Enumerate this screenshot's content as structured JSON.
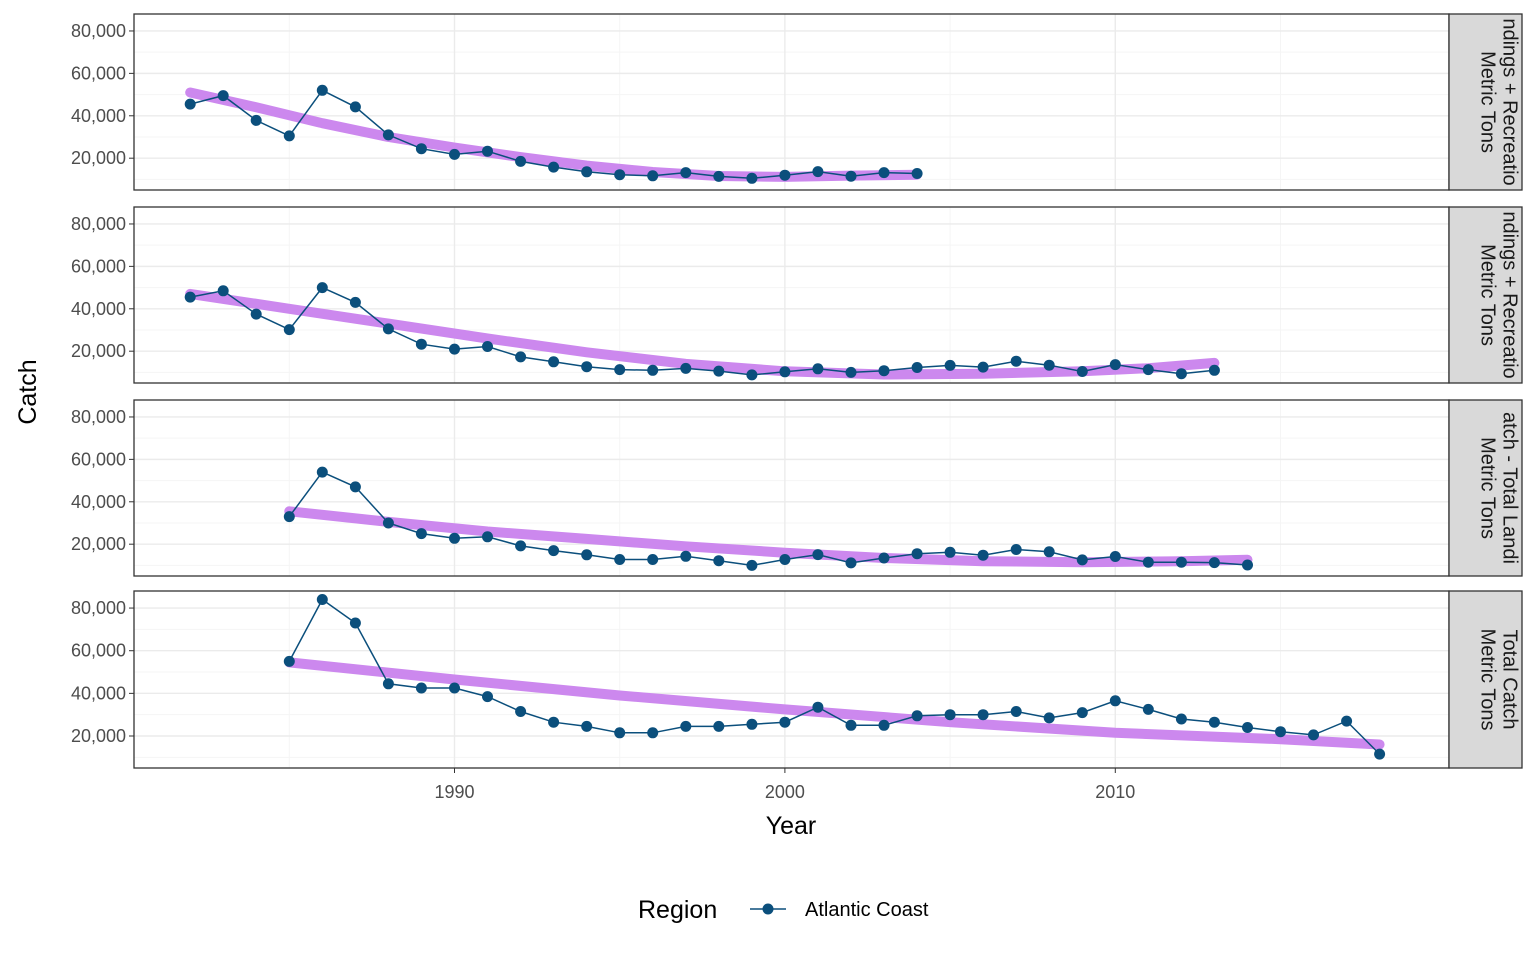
{
  "chart_data": {
    "type": "line",
    "xlabel": "Year",
    "ylabel": "Catch",
    "xlim": [
      1980.3,
      2020.1
    ],
    "x_ticks": [
      1990,
      2000,
      2010
    ],
    "x_tick_labels": [
      "1990",
      "2000",
      "2010"
    ],
    "y_ticks": [
      20000,
      40000,
      60000,
      80000
    ],
    "y_tick_labels": [
      "20,000",
      "40,000",
      "60,000",
      "80,000"
    ],
    "grid": true,
    "legend": {
      "position": "bottom",
      "title": "Region",
      "entries": [
        "Atlantic Coast"
      ]
    },
    "colors": {
      "series": "#0b4f7c",
      "trend": "#cc88ee",
      "strip_fill": "#d9d9d9",
      "grid_major": "#ebebeb",
      "grid_minor": "#f5f5f5"
    },
    "panels": [
      {
        "strip_lines": [
          "ndings + Recreatio",
          "Metric Tons"
        ],
        "ylim": [
          5000,
          88000
        ],
        "series": [
          {
            "name": "Atlantic Coast",
            "x": [
              1982,
              1983,
              1984,
              1985,
              1986,
              1987,
              1988,
              1989,
              1990,
              1991,
              1992,
              1993,
              1994,
              1995,
              1996,
              1997,
              1998,
              1999,
              2000,
              2001,
              2002,
              2003,
              2004
            ],
            "y": [
              45500,
              49500,
              37800,
              30500,
              52000,
              44200,
              31000,
              24500,
              21800,
              23300,
              18500,
              15800,
              13600,
              12200,
              11700,
              13200,
              11400,
              10500,
              12000,
              13700,
              11500,
              13200,
              12800
            ]
          }
        ],
        "trend": {
          "x": [
            1982,
            1984,
            1986,
            1988,
            1990,
            1992,
            1994,
            1996,
            1998,
            2000,
            2002,
            2004
          ],
          "y": [
            51000,
            44000,
            36500,
            30000,
            25000,
            20500,
            16500,
            13500,
            11600,
            11200,
            11800,
            12200
          ]
        }
      },
      {
        "strip_lines": [
          "ndings + Recreatio",
          "Metric Tons"
        ],
        "ylim": [
          5000,
          88000
        ],
        "series": [
          {
            "name": "Atlantic Coast",
            "x": [
              1982,
              1983,
              1984,
              1985,
              1986,
              1987,
              1988,
              1989,
              1990,
              1991,
              1992,
              1993,
              1994,
              1995,
              1996,
              1997,
              1998,
              1999,
              2000,
              2001,
              2002,
              2003,
              2004,
              2005,
              2006,
              2007,
              2008,
              2009,
              2010,
              2011,
              2012,
              2013
            ],
            "y": [
              45500,
              48500,
              37500,
              30200,
              50000,
              43000,
              30500,
              23300,
              21000,
              22200,
              17300,
              15000,
              12700,
              11300,
              11000,
              11900,
              10600,
              8800,
              10300,
              11700,
              10000,
              10800,
              12300,
              13300,
              12500,
              15300,
              13400,
              10400,
              13700,
              11300,
              9400,
              11000
            ]
          }
        ],
        "trend": {
          "x": [
            1982,
            1985,
            1988,
            1991,
            1994,
            1997,
            2000,
            2003,
            2006,
            2009,
            2011,
            2013
          ],
          "y": [
            47000,
            40000,
            33000,
            26000,
            19500,
            14000,
            10500,
            9000,
            9400,
            10500,
            12000,
            14500
          ]
        }
      },
      {
        "strip_lines": [
          "atch - Total Landi",
          "Metric Tons"
        ],
        "ylim": [
          5000,
          88000
        ],
        "series": [
          {
            "name": "Atlantic Coast",
            "x": [
              1985,
              1986,
              1987,
              1988,
              1989,
              1990,
              1991,
              1992,
              1993,
              1994,
              1995,
              1996,
              1997,
              1998,
              1999,
              2000,
              2001,
              2002,
              2003,
              2004,
              2005,
              2006,
              2007,
              2008,
              2009,
              2010,
              2011,
              2012,
              2013,
              2014
            ],
            "y": [
              33000,
              54000,
              47000,
              30000,
              25000,
              22800,
              23500,
              19200,
              17000,
              15000,
              12800,
              12800,
              14300,
              12200,
              10000,
              12800,
              15100,
              11200,
              13500,
              15500,
              16200,
              14800,
              17500,
              16400,
              12600,
              14200,
              11500,
              11500,
              11300,
              10200
            ]
          }
        ],
        "trend": {
          "x": [
            1985,
            1988,
            1991,
            1994,
            1997,
            2000,
            2003,
            2006,
            2009,
            2012,
            2014
          ],
          "y": [
            35500,
            30500,
            26000,
            22500,
            19000,
            16000,
            13500,
            12000,
            11500,
            12000,
            12700
          ]
        }
      },
      {
        "strip_lines": [
          "Total Catch",
          "Metric Tons"
        ],
        "ylim": [
          5000,
          88000
        ],
        "series": [
          {
            "name": "Atlantic Coast",
            "x": [
              1985,
              1986,
              1987,
              1988,
              1989,
              1990,
              1991,
              1992,
              1993,
              1994,
              1995,
              1996,
              1997,
              1998,
              1999,
              2000,
              2001,
              2002,
              2003,
              2004,
              2005,
              2006,
              2007,
              2008,
              2009,
              2010,
              2011,
              2012,
              2013,
              2014,
              2015,
              2016,
              2017,
              2018
            ],
            "y": [
              55000,
              84000,
              73000,
              44500,
              42500,
              42500,
              38500,
              31500,
              26500,
              24500,
              21500,
              21500,
              24500,
              24500,
              25500,
              26500,
              33500,
              25000,
              25000,
              29500,
              30000,
              30000,
              31500,
              28500,
              31000,
              36500,
              32500,
              28000,
              26500,
              24000,
              22000,
              20500,
              27000,
              11500
            ]
          }
        ],
        "trend": {
          "x": [
            1985,
            1990,
            1995,
            2000,
            2005,
            2010,
            2015,
            2018
          ],
          "y": [
            54500,
            46500,
            39000,
            32500,
            26500,
            21500,
            18500,
            16000
          ]
        }
      }
    ]
  }
}
